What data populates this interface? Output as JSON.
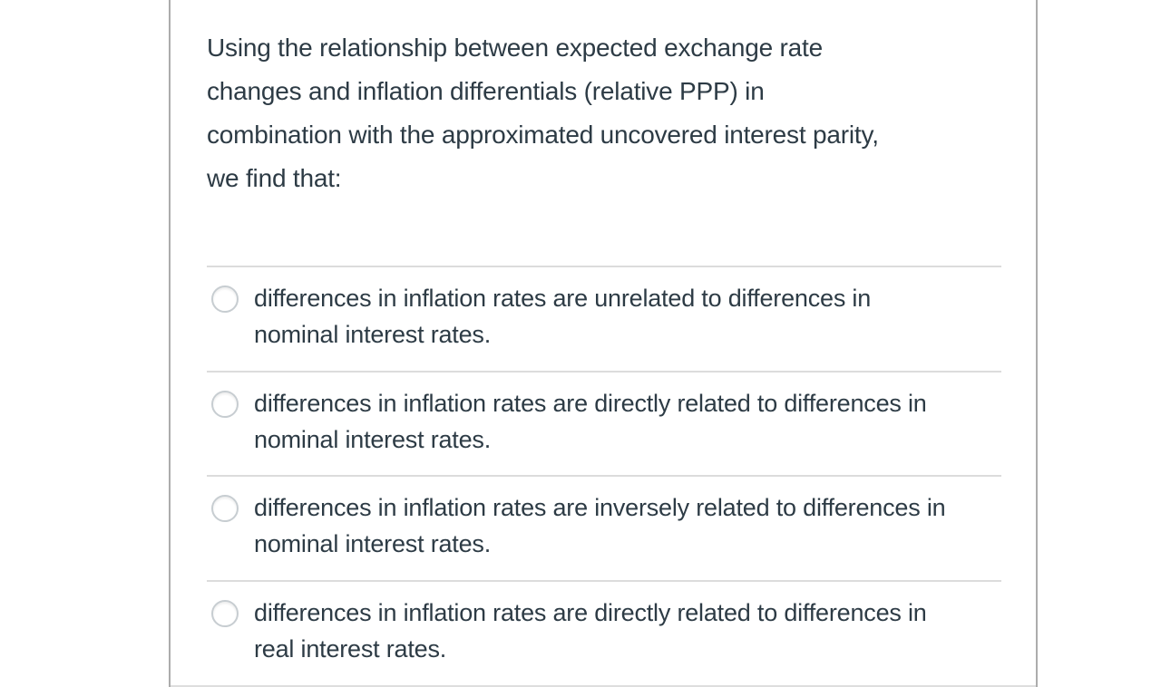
{
  "colors": {
    "background": "#ffffff",
    "text": "#2d3b45",
    "card_border": "#acacac",
    "divider": "#dcdcdc",
    "radio_border": "#c7cdd1"
  },
  "question": {
    "text": "Using the relationship between expected exchange rate\nchanges and inflation differentials (relative PPP) in\ncombination with the approximated uncovered interest parity,\nwe find that:"
  },
  "options": [
    {
      "text": "differences in inflation rates are unrelated to differences in\nnominal interest rates.",
      "selected": false
    },
    {
      "text": "differences in inflation rates are directly related to differences in\nnominal interest rates.",
      "selected": false
    },
    {
      "text": "differences in inflation rates are inversely related to differences in\nnominal interest rates.",
      "selected": false
    },
    {
      "text": "differences in inflation rates are directly related to differences in\nreal interest rates.",
      "selected": false
    }
  ]
}
